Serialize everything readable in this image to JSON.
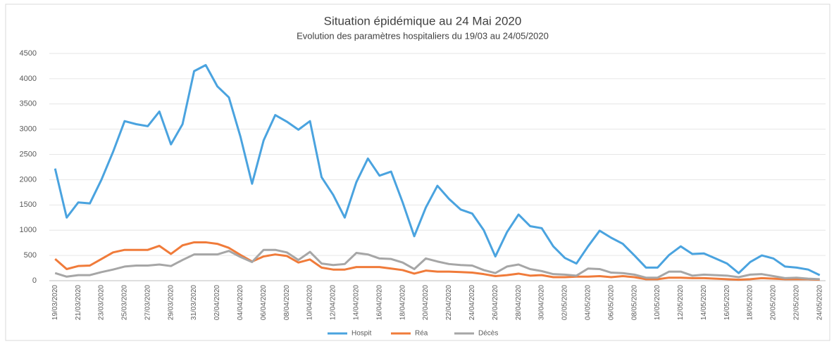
{
  "chart_data": {
    "type": "line",
    "title": "Situation épidémique au 24 Mai 2020",
    "subtitle": "Evolution des paramètres hospitaliers du 19/03 au 24/05/2020",
    "categories": [
      "19/03/2020",
      null,
      "21/03/2020",
      null,
      "23/03/2020",
      null,
      "25/03/2020",
      null,
      "27/03/2020",
      null,
      "29/03/2020",
      null,
      "31/03/2020",
      null,
      "02/04/2020",
      null,
      "04/04/2020",
      null,
      "06/04/2020",
      null,
      "08/04/2020",
      null,
      "10/04/2020",
      null,
      "12/04/2020",
      null,
      "14/04/2020",
      null,
      "16/04/2020",
      null,
      "18/04/2020",
      null,
      "20/04/2020",
      null,
      "22/04/2020",
      null,
      "24/04/2020",
      null,
      "26/04/2020",
      null,
      "28/04/2020",
      null,
      "30/04/2020",
      null,
      "02/05/2020",
      null,
      "04/05/2020",
      null,
      "06/05/2020",
      null,
      "08/05/2020",
      null,
      "10/05/2020",
      null,
      "12/05/2020",
      null,
      "14/05/2020",
      null,
      "16/05/2020",
      null,
      "18/05/2020",
      null,
      "20/05/2020",
      null,
      "22/05/2020",
      null,
      "24/05/2020"
    ],
    "series": [
      {
        "name": "Hospit",
        "color": "#4aa3df",
        "values": [
          2220,
          1250,
          1550,
          1530,
          2000,
          2550,
          3160,
          3100,
          3060,
          3350,
          2700,
          3100,
          4150,
          4270,
          3850,
          3630,
          2850,
          1920,
          2780,
          3280,
          3150,
          2990,
          3160,
          2050,
          1700,
          1250,
          1950,
          2420,
          2080,
          2160,
          1550,
          880,
          1450,
          1880,
          1620,
          1410,
          1330,
          1000,
          480,
          960,
          1310,
          1080,
          1040,
          680,
          450,
          340,
          680,
          990,
          850,
          730,
          500,
          260,
          260,
          510,
          680,
          530,
          540,
          440,
          340,
          150,
          370,
          500,
          440,
          280,
          260,
          220,
          110
        ]
      },
      {
        "name": "Réa",
        "color": "#f07b3a",
        "values": [
          430,
          230,
          290,
          300,
          430,
          560,
          610,
          610,
          610,
          690,
          530,
          700,
          760,
          760,
          730,
          650,
          510,
          380,
          480,
          520,
          490,
          360,
          420,
          260,
          220,
          220,
          270,
          270,
          270,
          240,
          210,
          140,
          200,
          180,
          180,
          170,
          160,
          130,
          90,
          110,
          140,
          100,
          110,
          70,
          70,
          80,
          80,
          90,
          70,
          90,
          70,
          30,
          30,
          60,
          60,
          50,
          50,
          40,
          30,
          20,
          30,
          50,
          40,
          30,
          30,
          30,
          20
        ]
      },
      {
        "name": "Décès",
        "color": "#a6a6a6",
        "values": [
          150,
          80,
          110,
          110,
          170,
          220,
          280,
          300,
          300,
          320,
          290,
          410,
          520,
          520,
          520,
          590,
          470,
          370,
          610,
          610,
          560,
          410,
          570,
          340,
          310,
          330,
          550,
          520,
          440,
          430,
          360,
          230,
          440,
          380,
          330,
          310,
          300,
          210,
          150,
          280,
          320,
          230,
          190,
          130,
          120,
          100,
          240,
          230,
          160,
          150,
          120,
          60,
          60,
          180,
          180,
          100,
          120,
          110,
          100,
          70,
          120,
          130,
          90,
          50,
          60,
          40,
          30
        ]
      }
    ],
    "ylim": [
      0,
      4500
    ],
    "yticks": [
      0,
      500,
      1000,
      1500,
      2000,
      2500,
      3000,
      3500,
      4000,
      4500
    ],
    "grid": true,
    "legend": "bottom"
  }
}
